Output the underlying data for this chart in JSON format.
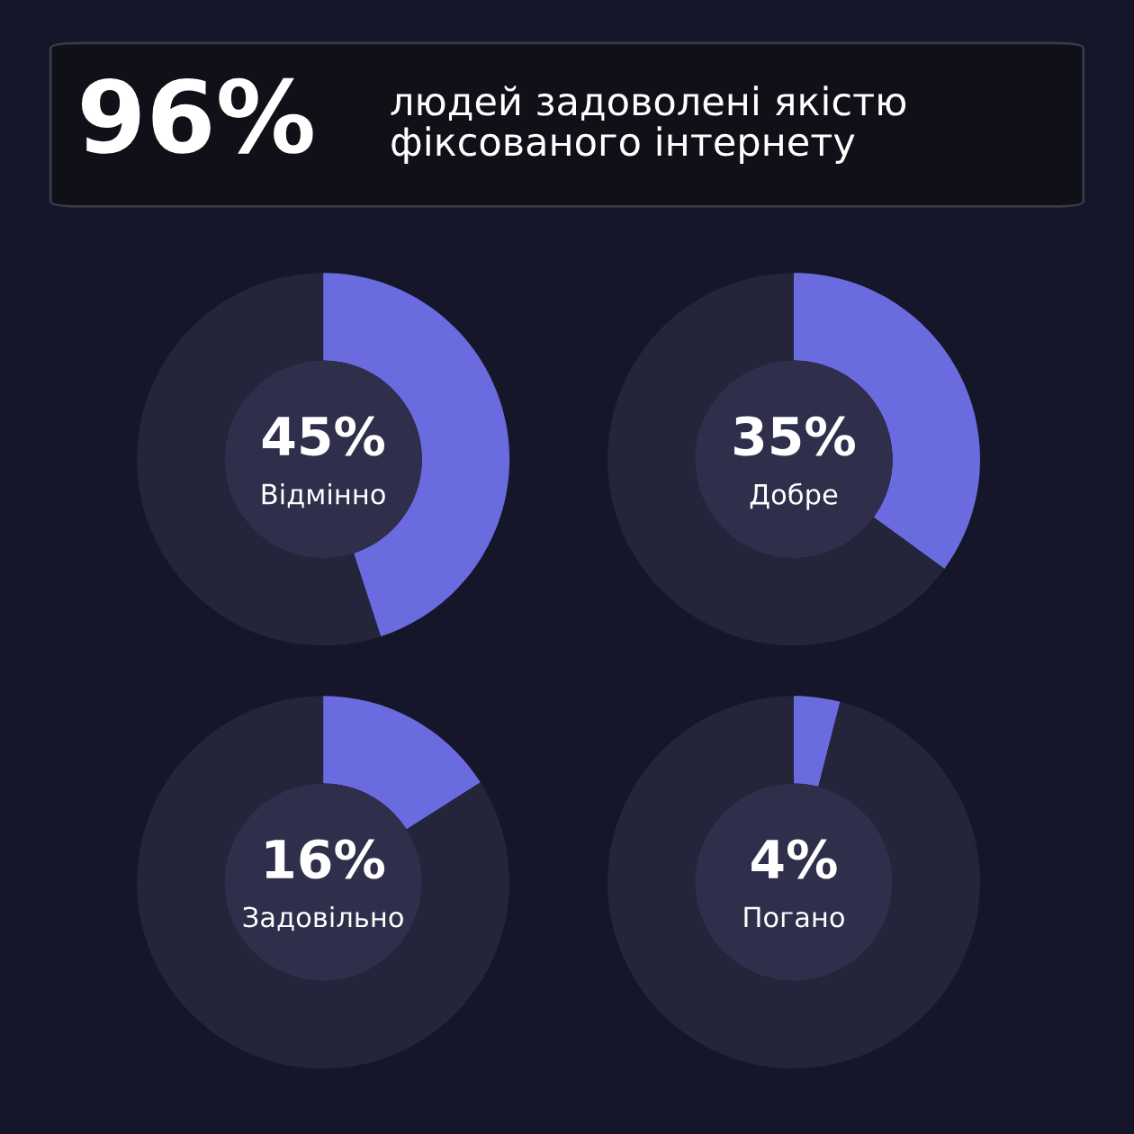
{
  "chart_data": [
    {
      "type": "other",
      "title": "96%",
      "subtitle": "людей задоволені якістю\nфіксованого інтернету"
    },
    {
      "type": "donut",
      "title": "Відмінно",
      "categories": [
        null,
        null
      ],
      "values": [
        45,
        55
      ],
      "colors": [
        "#6b6be0",
        "#24243a"
      ],
      "value_labels": [
        "45%",
        null
      ]
    },
    {
      "type": "donut",
      "title": "Добре",
      "categories": [
        null,
        null
      ],
      "values": [
        35,
        65
      ],
      "colors": [
        "#6b6be0",
        "#24243a"
      ],
      "value_labels": [
        "35%",
        null
      ]
    },
    {
      "type": "donut",
      "title": "Задовільно",
      "categories": [
        null,
        null
      ],
      "values": [
        16,
        84
      ],
      "colors": [
        "#6b6be0",
        "#24243a"
      ],
      "value_labels": [
        "16%",
        null
      ]
    },
    {
      "type": "donut",
      "title": "Погано",
      "categories": [
        null,
        null
      ],
      "values": [
        4,
        96
      ],
      "colors": [
        "#6b6be0",
        "#24243a"
      ],
      "value_labels": [
        "4%",
        null
      ]
    }
  ]
}
